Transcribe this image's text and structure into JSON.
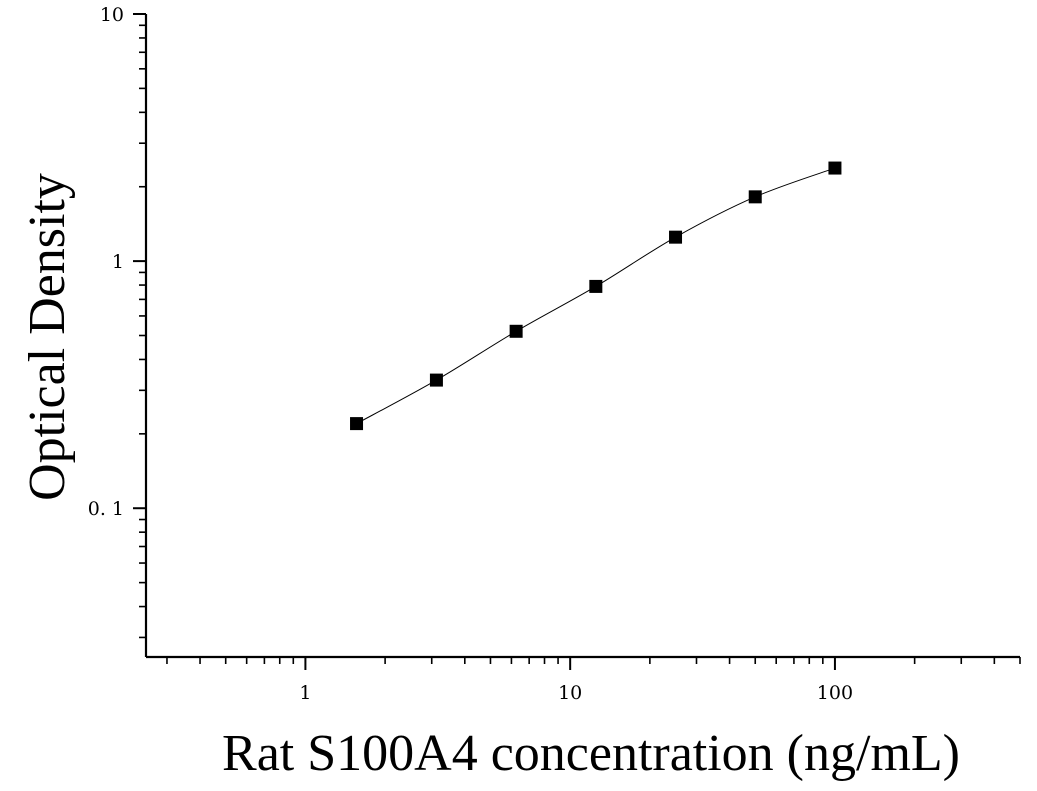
{
  "chart_data": {
    "type": "scatter",
    "title": "",
    "xlabel": "Rat S100A4 concentration (ng/mL)",
    "ylabel": "Optical Density",
    "xscale": "log",
    "yscale": "log",
    "xlim": [
      0.25,
      500
    ],
    "ylim": [
      0.025,
      10
    ],
    "x_ticks": [
      1,
      10,
      100
    ],
    "x_tick_labels": [
      "1",
      "10",
      "100"
    ],
    "y_ticks": [
      0.1,
      1,
      10
    ],
    "y_tick_labels": [
      "0. 1",
      "1",
      "10"
    ],
    "grid": false,
    "legend": "none",
    "marker": "square",
    "series": [
      {
        "x": [
          1.56,
          3.125,
          6.25,
          12.5,
          25,
          50,
          100
        ],
        "y": [
          0.22,
          0.33,
          0.52,
          0.79,
          1.25,
          1.82,
          2.38
        ],
        "color": "#000000",
        "fit": "four-parameter logistic curve"
      }
    ]
  }
}
